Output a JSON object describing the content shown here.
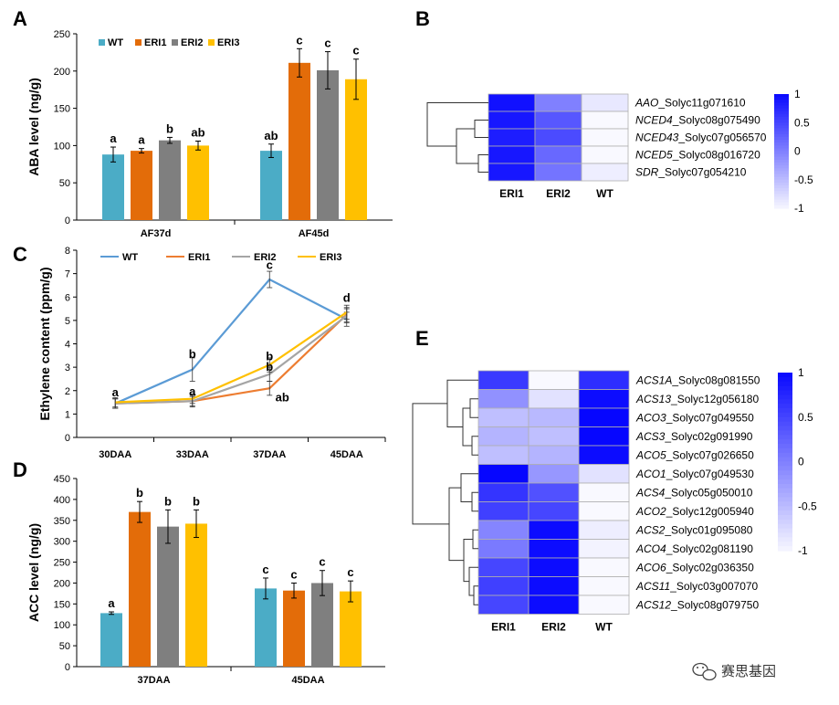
{
  "colors": {
    "WT": "#4bacc6",
    "ERI1": "#e36c09",
    "ERI2": "#7f7f7f",
    "ERI3": "#ffc000",
    "WT_line": "#5b9bd5",
    "ERI1_line": "#ed7d31",
    "ERI2_line": "#a5a5a5",
    "ERI3_line": "#ffc000",
    "heat_high": "#0000ff",
    "heat_low": "#ffffff"
  },
  "watermark": {
    "icon": "wechat-icon",
    "text": "赛思基因"
  },
  "chart_data": [
    {
      "id": "A",
      "letter": "A",
      "type": "bar",
      "ylabel": "ABA level (ng/g)",
      "ylim": [
        0,
        250
      ],
      "yticks": [
        0,
        50,
        100,
        150,
        200,
        250
      ],
      "categories": [
        "AF37d",
        "AF45d"
      ],
      "series": [
        {
          "name": "WT",
          "values": [
            88,
            93
          ],
          "errors": [
            10,
            9
          ],
          "sig": [
            "a",
            "ab"
          ]
        },
        {
          "name": "ERI1",
          "values": [
            93,
            211
          ],
          "errors": [
            3,
            19
          ],
          "sig": [
            "a",
            "c"
          ]
        },
        {
          "name": "ERI2",
          "values": [
            107,
            201
          ],
          "errors": [
            4,
            25
          ],
          "sig": [
            "b",
            "c"
          ]
        },
        {
          "name": "ERI3",
          "values": [
            100,
            189
          ],
          "errors": [
            6,
            27
          ],
          "sig": [
            "ab",
            "c"
          ]
        }
      ],
      "legend": [
        "WT",
        "ERI1",
        "ERI2",
        "ERI3"
      ]
    },
    {
      "id": "C",
      "letter": "C",
      "type": "line",
      "ylabel": "Ethylene content (ppm/g)",
      "ylim": [
        0,
        8
      ],
      "yticks": [
        0,
        1,
        2,
        3,
        4,
        5,
        6,
        7,
        8
      ],
      "categories": [
        "30DAA",
        "33DAA",
        "37DAA",
        "45DAA"
      ],
      "series": [
        {
          "name": "WT",
          "values": [
            1.45,
            2.9,
            6.75,
            5.05
          ],
          "errors": [
            0.2,
            0.5,
            0.35,
            0.3
          ]
        },
        {
          "name": "ERI1",
          "values": [
            1.45,
            1.55,
            2.1,
            5.25
          ],
          "errors": [
            0.2,
            0.25,
            0.3,
            0.3
          ]
        },
        {
          "name": "ERI2",
          "values": [
            1.45,
            1.55,
            2.7,
            5.2
          ],
          "errors": [
            0.2,
            0.2,
            0.3,
            0.3
          ]
        },
        {
          "name": "ERI3",
          "values": [
            1.5,
            1.65,
            3.1,
            5.35
          ],
          "errors": [
            0.2,
            0.2,
            0.3,
            0.3
          ]
        }
      ],
      "legend": [
        "WT",
        "ERI1",
        "ERI2",
        "ERI3"
      ],
      "annotations": [
        {
          "cat": 0,
          "value": 1.75,
          "text": "a"
        },
        {
          "cat": 1,
          "value": 3.4,
          "text": "b"
        },
        {
          "cat": 1,
          "value": 1.8,
          "text": "a"
        },
        {
          "cat": 2,
          "value": 7.2,
          "text": "c"
        },
        {
          "cat": 2,
          "value": 3.3,
          "text": "b"
        },
        {
          "cat": 2,
          "value": 2.85,
          "text": "b"
        },
        {
          "cat": 2,
          "value": 1.55,
          "text": "ab"
        },
        {
          "cat": 3,
          "value": 5.8,
          "text": "d"
        }
      ]
    },
    {
      "id": "D",
      "letter": "D",
      "type": "bar",
      "ylabel": "ACC level (ng/g)",
      "ylim": [
        0,
        450
      ],
      "yticks": [
        0,
        50,
        100,
        150,
        200,
        250,
        300,
        350,
        400,
        450
      ],
      "categories": [
        "37DAA",
        "45DAA"
      ],
      "series": [
        {
          "name": "WT",
          "values": [
            128,
            187
          ],
          "errors": [
            3,
            25
          ],
          "sig": [
            "a",
            "c"
          ]
        },
        {
          "name": "ERI1",
          "values": [
            370,
            182
          ],
          "errors": [
            25,
            18
          ],
          "sig": [
            "b",
            "c"
          ]
        },
        {
          "name": "ERI2",
          "values": [
            335,
            200
          ],
          "errors": [
            40,
            30
          ],
          "sig": [
            "b",
            "c"
          ]
        },
        {
          "name": "ERI3",
          "values": [
            342,
            180
          ],
          "errors": [
            33,
            25
          ],
          "sig": [
            "b",
            "c"
          ]
        }
      ]
    },
    {
      "id": "B",
      "letter": "B",
      "type": "heatmap",
      "columns": [
        "ERI1",
        "ERI2",
        "WT"
      ],
      "rows": [
        {
          "gene": "AAO",
          "locus": "_Solyc11g071610",
          "values": [
            0.95,
            0.0,
            -0.9
          ]
        },
        {
          "gene": "NCED4",
          "locus": "_Solyc08g075490",
          "values": [
            0.9,
            0.35,
            -1.05
          ]
        },
        {
          "gene": "NCED43",
          "locus": "_Solyc07g056570",
          "values": [
            0.85,
            0.45,
            -1.05
          ]
        },
        {
          "gene": "NCED5",
          "locus": "_Solyc08g016720",
          "values": [
            0.9,
            0.2,
            -1.05
          ]
        },
        {
          "gene": "SDR",
          "locus": "_Solyc07g054210",
          "values": [
            0.9,
            0.1,
            -0.95
          ]
        }
      ],
      "colorbar": {
        "min": -1,
        "max": 1,
        "ticks": [
          "1",
          "0.5",
          "0",
          "-0.5",
          "-1"
        ],
        "tick_values": [
          1,
          0.5,
          0,
          -0.5,
          -1
        ]
      }
    },
    {
      "id": "E",
      "letter": "E",
      "type": "heatmap",
      "columns": [
        "ERI1",
        "ERI2",
        "WT"
      ],
      "rows": [
        {
          "gene": "ACS1A",
          "locus": "_Solyc08g081550",
          "values": [
            0.6,
            -1.05,
            0.7
          ]
        },
        {
          "gene": "ACS13",
          "locus": "_Solyc12g056180",
          "values": [
            -0.15,
            -0.85,
            1.0
          ]
        },
        {
          "gene": "ACO3",
          "locus": "_Solyc07g049550",
          "values": [
            -0.55,
            -0.5,
            1.05
          ]
        },
        {
          "gene": "ACS3",
          "locus": "_Solyc02g091990",
          "values": [
            -0.45,
            -0.55,
            1.05
          ]
        },
        {
          "gene": "ACO5",
          "locus": "_Solyc07g026650",
          "values": [
            -0.55,
            -0.45,
            1.0
          ]
        },
        {
          "gene": "ACO1",
          "locus": "_Solyc07g049530",
          "values": [
            1.05,
            -0.2,
            -0.85
          ]
        },
        {
          "gene": "ACS4",
          "locus": "_Solyc05g050010",
          "values": [
            0.65,
            0.4,
            -1.05
          ]
        },
        {
          "gene": "ACO2",
          "locus": "_Solyc12g005940",
          "values": [
            0.55,
            0.5,
            -1.05
          ]
        },
        {
          "gene": "ACS2",
          "locus": "_Solyc01g095080",
          "values": [
            -0.05,
            1.0,
            -0.95
          ]
        },
        {
          "gene": "ACO4",
          "locus": "_Solyc02g081190",
          "values": [
            0.05,
            1.0,
            -1.0
          ]
        },
        {
          "gene": "ACO6",
          "locus": "_Solyc02g036350",
          "values": [
            0.5,
            1.0,
            -1.05
          ]
        },
        {
          "gene": "ACS11",
          "locus": "_Solyc03g007070",
          "values": [
            0.55,
            1.0,
            -1.05
          ]
        },
        {
          "gene": "ACS12",
          "locus": "_Solyc08g079750",
          "values": [
            0.5,
            1.0,
            -1.05
          ]
        }
      ],
      "colorbar": {
        "min": -1,
        "max": 1,
        "ticks": [
          "1",
          "0.5",
          "0",
          "-0.5",
          "-1"
        ],
        "tick_values": [
          1,
          0.5,
          0,
          -0.5,
          -1
        ]
      }
    }
  ]
}
